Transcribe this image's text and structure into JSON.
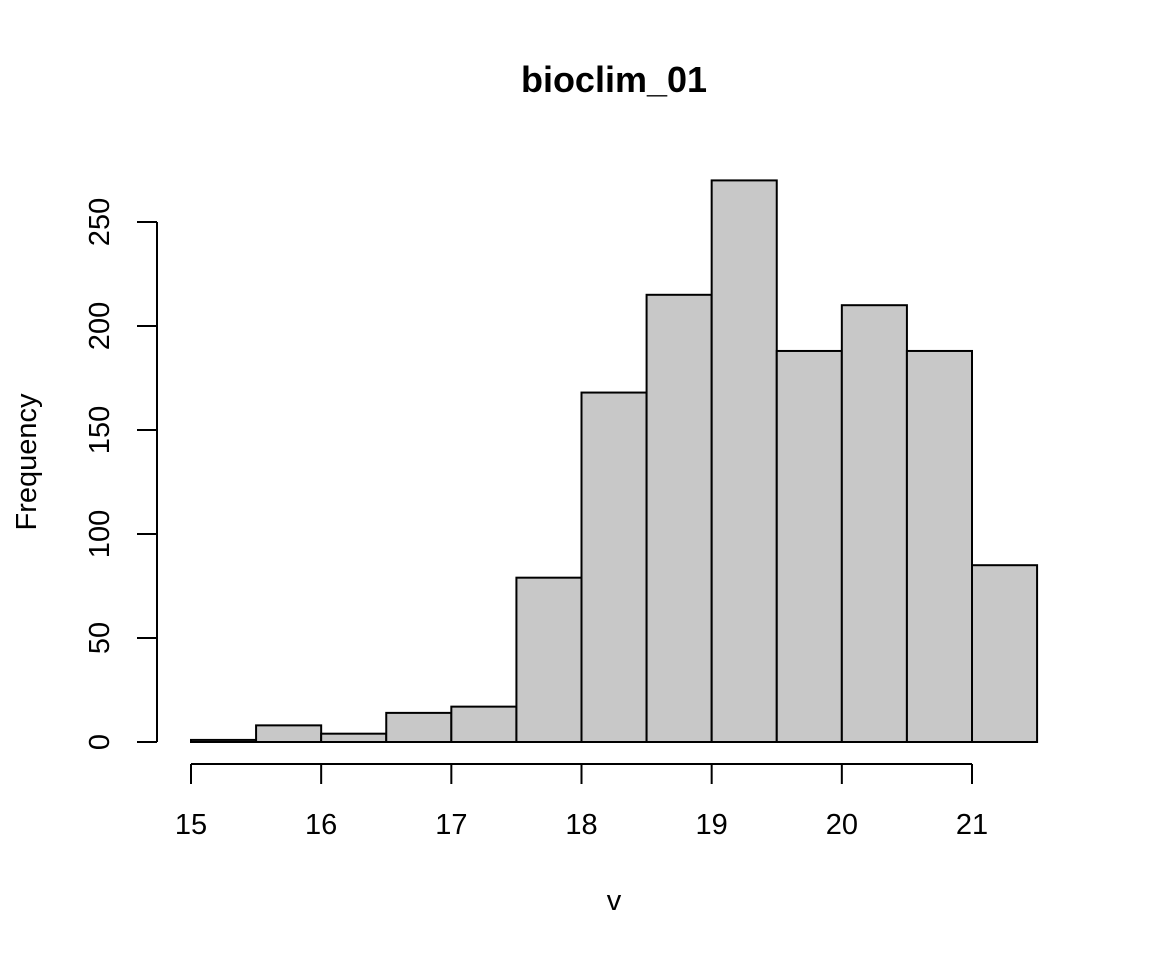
{
  "chart_data": {
    "type": "bar",
    "title": "bioclim_01",
    "xlabel": "v",
    "ylabel": "Frequency",
    "bins": [
      {
        "from": 15.0,
        "to": 15.5,
        "count": 1
      },
      {
        "from": 15.5,
        "to": 16.0,
        "count": 8
      },
      {
        "from": 16.0,
        "to": 16.5,
        "count": 4
      },
      {
        "from": 16.5,
        "to": 17.0,
        "count": 14
      },
      {
        "from": 17.0,
        "to": 17.5,
        "count": 17
      },
      {
        "from": 17.5,
        "to": 18.0,
        "count": 79
      },
      {
        "from": 18.0,
        "to": 18.5,
        "count": 168
      },
      {
        "from": 18.5,
        "to": 19.0,
        "count": 215
      },
      {
        "from": 19.0,
        "to": 19.5,
        "count": 270
      },
      {
        "from": 19.5,
        "to": 20.0,
        "count": 188
      },
      {
        "from": 20.0,
        "to": 20.5,
        "count": 210
      },
      {
        "from": 20.5,
        "to": 21.0,
        "count": 188
      },
      {
        "from": 21.0,
        "to": 21.5,
        "count": 85
      }
    ],
    "x_ticks": [
      15,
      16,
      17,
      18,
      19,
      20,
      21
    ],
    "y_ticks": [
      0,
      50,
      100,
      150,
      200,
      250
    ],
    "xlim": [
      15,
      21.5
    ],
    "ylim": [
      0,
      270
    ],
    "bar_color": "#c8c8c8",
    "edge_color": "#000000",
    "grid": false,
    "legend": "none"
  }
}
